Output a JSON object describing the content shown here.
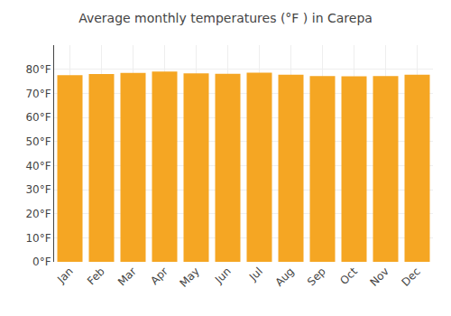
{
  "chart_data": {
    "type": "bar",
    "title": "Average monthly temperatures (°F ) in Carepa",
    "categories": [
      "Jan",
      "Feb",
      "Mar",
      "Apr",
      "May",
      "Jun",
      "Jul",
      "Aug",
      "Sep",
      "Oct",
      "Nov",
      "Dec"
    ],
    "values": [
      77.5,
      78.0,
      78.5,
      79.0,
      78.3,
      78.1,
      78.6,
      77.7,
      77.2,
      77.1,
      77.2,
      77.7
    ],
    "color": "#F5A623",
    "ylim": [
      0,
      90
    ],
    "yticks": [
      {
        "value": 0,
        "label": "0°F"
      },
      {
        "value": 10,
        "label": "10°F"
      },
      {
        "value": 20,
        "label": "20°F"
      },
      {
        "value": 30,
        "label": "30°F"
      },
      {
        "value": 40,
        "label": "40°F"
      },
      {
        "value": 50,
        "label": "50°F"
      },
      {
        "value": 60,
        "label": "60°F"
      },
      {
        "value": 70,
        "label": "70°F"
      },
      {
        "value": 80,
        "label": "80°F"
      }
    ],
    "grid": true
  }
}
